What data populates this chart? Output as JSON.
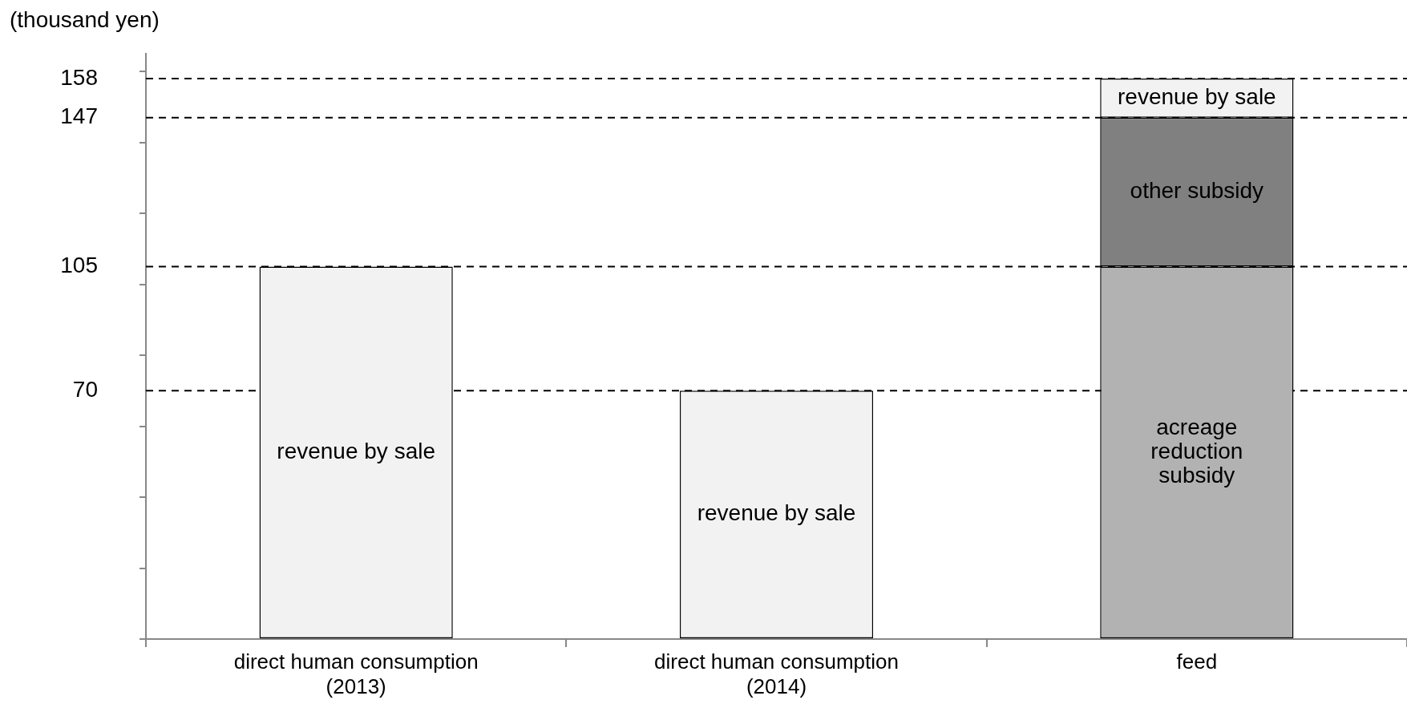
{
  "chart_data": {
    "type": "bar",
    "ylabel": "(thousand yen)",
    "stacked": true,
    "legend": false,
    "grid": false,
    "categories": [
      "direct human consumption (2013)",
      "direct human consumption (2014)",
      "feed"
    ],
    "series": [
      {
        "name": "acreage reduction subsidy",
        "color": "#b2b2b2",
        "values": [
          null,
          null,
          105
        ]
      },
      {
        "name": "other subsidy",
        "color": "#808080",
        "values": [
          null,
          null,
          42
        ]
      },
      {
        "name": "revenue by sale",
        "color": "#f2f2f2",
        "values": [
          105,
          70,
          11
        ]
      }
    ],
    "ylim": [
      0,
      165
    ],
    "yticks": [
      {
        "value": 0,
        "label": null
      },
      {
        "value": 20,
        "label": null
      },
      {
        "value": 40,
        "label": null
      },
      {
        "value": 60,
        "label": null
      },
      70,
      {
        "value": 80,
        "label": null
      },
      {
        "value": 100,
        "label": null
      },
      105,
      {
        "value": 120,
        "label": null
      },
      {
        "value": 140,
        "label": null
      },
      147,
      158,
      {
        "value": 160,
        "label": null
      }
    ],
    "ref_lines": [
      {
        "axis": "y",
        "value": 158,
        "line_style": "dashed",
        "color": "#000000"
      },
      {
        "axis": "y",
        "value": 147,
        "line_style": "dashed",
        "color": "#000000"
      },
      {
        "axis": "y",
        "value": 105,
        "line_style": "dashed",
        "color": "#000000"
      },
      {
        "axis": "y",
        "value": 70,
        "line_style": "dashed",
        "color": "#000000"
      }
    ]
  }
}
